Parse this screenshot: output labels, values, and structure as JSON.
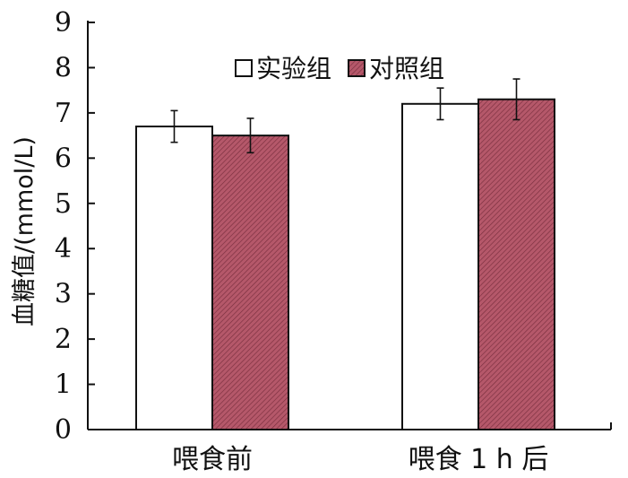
{
  "chart_data": {
    "type": "bar",
    "categories": [
      "喂食前",
      "喂食 1 h 后"
    ],
    "series": [
      {
        "name": "实验组",
        "values": [
          6.7,
          7.2
        ],
        "errors": [
          0.35,
          0.35
        ],
        "color": "#ffffff"
      },
      {
        "name": "对照组",
        "values": [
          6.5,
          7.3
        ],
        "errors": [
          0.38,
          0.45
        ],
        "color": "#b5586a"
      }
    ],
    "title": "",
    "xlabel": "",
    "ylabel": "血糖值/(mmol/L)",
    "ylim": [
      0,
      9
    ],
    "yticks": [
      0,
      1,
      2,
      3,
      4,
      5,
      6,
      7,
      8,
      9
    ],
    "grid": false,
    "legend_position": "top-center"
  }
}
